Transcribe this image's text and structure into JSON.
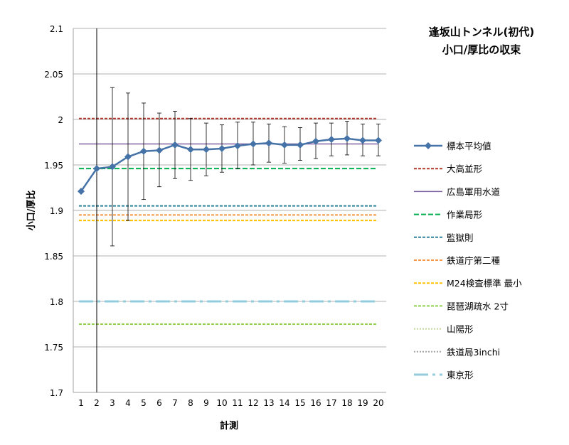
{
  "chart_data": {
    "type": "line",
    "title": [
      "逢坂山トンネル(初代)",
      "小口/厚比の収束"
    ],
    "xlabel": "計測",
    "ylabel": "小口/厚比",
    "x": [
      1,
      2,
      3,
      4,
      5,
      6,
      7,
      8,
      9,
      10,
      11,
      12,
      13,
      14,
      15,
      16,
      17,
      18,
      19,
      20
    ],
    "ylim": [
      1.7,
      2.1
    ],
    "yticks": [
      "1.7",
      "1.75",
      "1.8",
      "1.85",
      "1.9",
      "1.95",
      "2",
      "2.05",
      "2.1"
    ],
    "ytick_values": [
      1.7,
      1.75,
      1.8,
      1.85,
      1.9,
      1.95,
      2.0,
      2.05,
      2.1
    ],
    "grid": true,
    "legend_position": "right",
    "series": [
      {
        "name": "標本平均値",
        "color": "#4572A7",
        "values": [
          1.921,
          1.946,
          1.948,
          1.959,
          1.965,
          1.966,
          1.972,
          1.967,
          1.967,
          1.968,
          1.971,
          1.973,
          1.974,
          1.972,
          1.972,
          1.976,
          1.978,
          1.979,
          1.977,
          1.977
        ],
        "error_low": [
          null,
          null,
          1.861,
          1.889,
          1.912,
          1.926,
          1.935,
          1.933,
          1.938,
          1.942,
          1.946,
          1.95,
          1.953,
          1.952,
          1.955,
          1.957,
          1.96,
          1.961,
          1.96,
          1.96
        ],
        "error_high": [
          null,
          null,
          2.035,
          2.029,
          2.018,
          2.007,
          2.009,
          2.001,
          1.996,
          1.994,
          1.997,
          1.997,
          1.995,
          1.992,
          1.991,
          1.996,
          1.996,
          1.998,
          1.995,
          1.995
        ]
      }
    ],
    "error_line_x": 2,
    "reference_lines": [
      {
        "name": "大高並形",
        "value": 2.001,
        "color": "#B03A2E",
        "dash": "4,2",
        "width": 2,
        "drawn": true
      },
      {
        "name": "広島軍用水道",
        "value": 1.973,
        "color": "#8064A2",
        "dash": "",
        "width": 1.5,
        "drawn": true
      },
      {
        "name": "作業局形",
        "value": 1.946,
        "color": "#00B050",
        "dash": "7,3",
        "width": 2,
        "drawn": true
      },
      {
        "name": "監獄則",
        "value": 1.905,
        "color": "#31849B",
        "dash": "4,2",
        "width": 2,
        "drawn": true
      },
      {
        "name": "鉄道庁第二種",
        "value": 1.895,
        "color": "#F79646",
        "dash": "4,2",
        "width": 2,
        "drawn": true
      },
      {
        "name": "M24検査標準 最小",
        "value": 1.889,
        "color": "#FFC000",
        "dash": "4,2",
        "width": 2,
        "drawn": true
      },
      {
        "name": "琵琶湖疏水 2寸",
        "value": 1.775,
        "color": "#92D050",
        "dash": "4,2",
        "width": 2,
        "drawn": true
      },
      {
        "name": "山陽形",
        "value": 1.8,
        "color": "#C3D69B",
        "dash": "2,2",
        "width": 2,
        "drawn": false
      },
      {
        "name": "鉄道局3inchi",
        "value": 1.8,
        "color": "#A6A6A6",
        "dash": "2,2",
        "width": 2,
        "drawn": false
      },
      {
        "name": "東京形",
        "value": 1.8,
        "color": "#93CDDD",
        "dash": "20,6,4,6",
        "width": 3,
        "drawn": true
      }
    ]
  }
}
